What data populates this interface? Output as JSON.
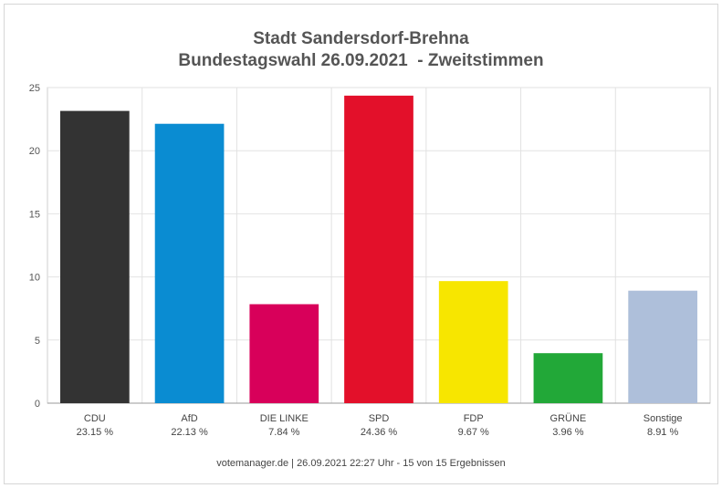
{
  "chart_data": {
    "type": "bar",
    "title": "Stadt Sandersdorf-Brehna",
    "subtitle": "Bundestagswahl 26.09.2021  - Zweitstimmen",
    "categories": [
      "CDU",
      "AfD",
      "DIE LINKE",
      "SPD",
      "FDP",
      "GRÜNE",
      "Sonstige"
    ],
    "value_labels": [
      "23.15 %",
      "22.13 %",
      "7.84 %",
      "24.36 %",
      "9.67 %",
      "3.96 %",
      "8.91 %"
    ],
    "values": [
      23.15,
      22.13,
      7.84,
      24.36,
      9.67,
      3.96,
      8.91
    ],
    "colors": [
      "#333333",
      "#0a8cd2",
      "#d8005a",
      "#e3102a",
      "#f7e600",
      "#22a838",
      "#aebfda"
    ],
    "yticks": [
      "0",
      "5",
      "10",
      "15",
      "20",
      "25"
    ],
    "ylim": [
      0,
      25
    ],
    "grid": true,
    "xlabel": "",
    "ylabel": ""
  },
  "footer": "votemanager.de | 26.09.2021 22:27 Uhr - 15 von 15 Ergebnissen"
}
